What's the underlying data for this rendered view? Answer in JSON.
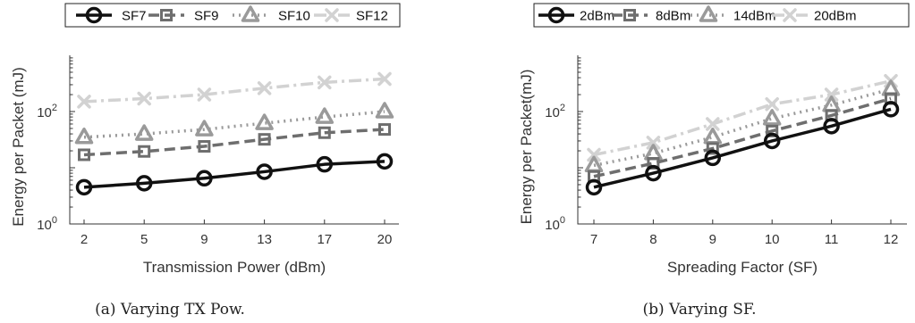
{
  "chart_data": [
    {
      "type": "line",
      "caption": "(a) Varying TX Pow.",
      "xlabel": "Transmission Power (dBm)",
      "ylabel": "Energy per Packet (mJ)",
      "yscale": "log",
      "ylim": [
        1,
        1000
      ],
      "yticks": [
        "10^0",
        "10^2"
      ],
      "categories": [
        "2",
        "5",
        "9",
        "13",
        "17",
        "20"
      ],
      "series": [
        {
          "name": "SF7",
          "values": [
            4.5,
            5.3,
            6.5,
            8.5,
            11.5,
            13
          ],
          "color": "#111111",
          "dash": "",
          "marker": "circle"
        },
        {
          "name": "SF9",
          "values": [
            17,
            19.5,
            24,
            32,
            42,
            48
          ],
          "color": "#6e6e6e",
          "dash": "12,6",
          "marker": "square"
        },
        {
          "name": "SF10",
          "values": [
            35,
            40,
            48,
            62,
            80,
            100
          ],
          "color": "#9a9a9a",
          "dash": "2,5",
          "marker": "triangle"
        },
        {
          "name": "SF12",
          "values": [
            150,
            170,
            200,
            260,
            330,
            380
          ],
          "color": "#d2d2d2",
          "dash": "14,5,3,5",
          "marker": "x"
        }
      ],
      "legend": "top"
    },
    {
      "type": "line",
      "caption": "(b) Varying SF.",
      "xlabel": "Spreading Factor (SF)",
      "ylabel": "Energy per Packet(mJ)",
      "yscale": "log",
      "ylim": [
        1,
        1000
      ],
      "yticks": [
        "10^0",
        "10^2"
      ],
      "categories": [
        "7",
        "8",
        "9",
        "10",
        "11",
        "12"
      ],
      "series": [
        {
          "name": "2dBm",
          "values": [
            4.5,
            8,
            15,
            30,
            55,
            110
          ],
          "color": "#111111",
          "dash": "",
          "marker": "circle"
        },
        {
          "name": "8dBm",
          "values": [
            7,
            12,
            22,
            45,
            85,
            170
          ],
          "color": "#6e6e6e",
          "dash": "12,6",
          "marker": "square"
        },
        {
          "name": "14dBm",
          "values": [
            11,
            18,
            35,
            75,
            130,
            250
          ],
          "color": "#9a9a9a",
          "dash": "2,5",
          "marker": "triangle"
        },
        {
          "name": "20dBm",
          "values": [
            17,
            28,
            60,
            135,
            200,
            350
          ],
          "color": "#d2d2d2",
          "dash": "14,5,3,5",
          "marker": "x"
        }
      ],
      "legend": "top"
    }
  ]
}
